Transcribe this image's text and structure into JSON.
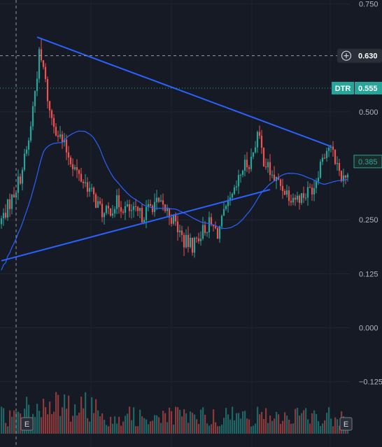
{
  "chart_data": {
    "type": "candlestick",
    "symbol_badge": "DTR",
    "y_ticks": [
      "0.750",
      "0.500",
      "0.250",
      "0.125",
      "0.000",
      "−0.125"
    ],
    "y_tick_values": [
      0.75,
      0.5,
      0.25,
      0.125,
      0.0,
      -0.125
    ],
    "ylim": [
      -0.175,
      0.76
    ],
    "grid": true,
    "legend": "none",
    "crosshair_price": "0.630",
    "last_price": "0.555",
    "ma_price_label": "0.385",
    "event_markers": [
      {
        "label": "E",
        "position": "left"
      },
      {
        "label": "E",
        "position": "right"
      }
    ],
    "colors": {
      "background": "#161a25",
      "up": "#26a69a",
      "down": "#ef5350",
      "trendline": "#2962ff",
      "ma": "#2962ff",
      "volume_up": "#26a69a",
      "volume_down": "#ef5350",
      "last_price_bg": "#26a69a"
    },
    "trendlines": [
      {
        "name": "",
        "from": {
          "bar": 17,
          "price": 0.673
        },
        "to": {
          "bar": 157,
          "price": 0.42
        }
      },
      {
        "name": "",
        "from": {
          "bar": 0,
          "price": 0.155
        },
        "to": {
          "bar": 128,
          "price": 0.32
        }
      }
    ]
  }
}
